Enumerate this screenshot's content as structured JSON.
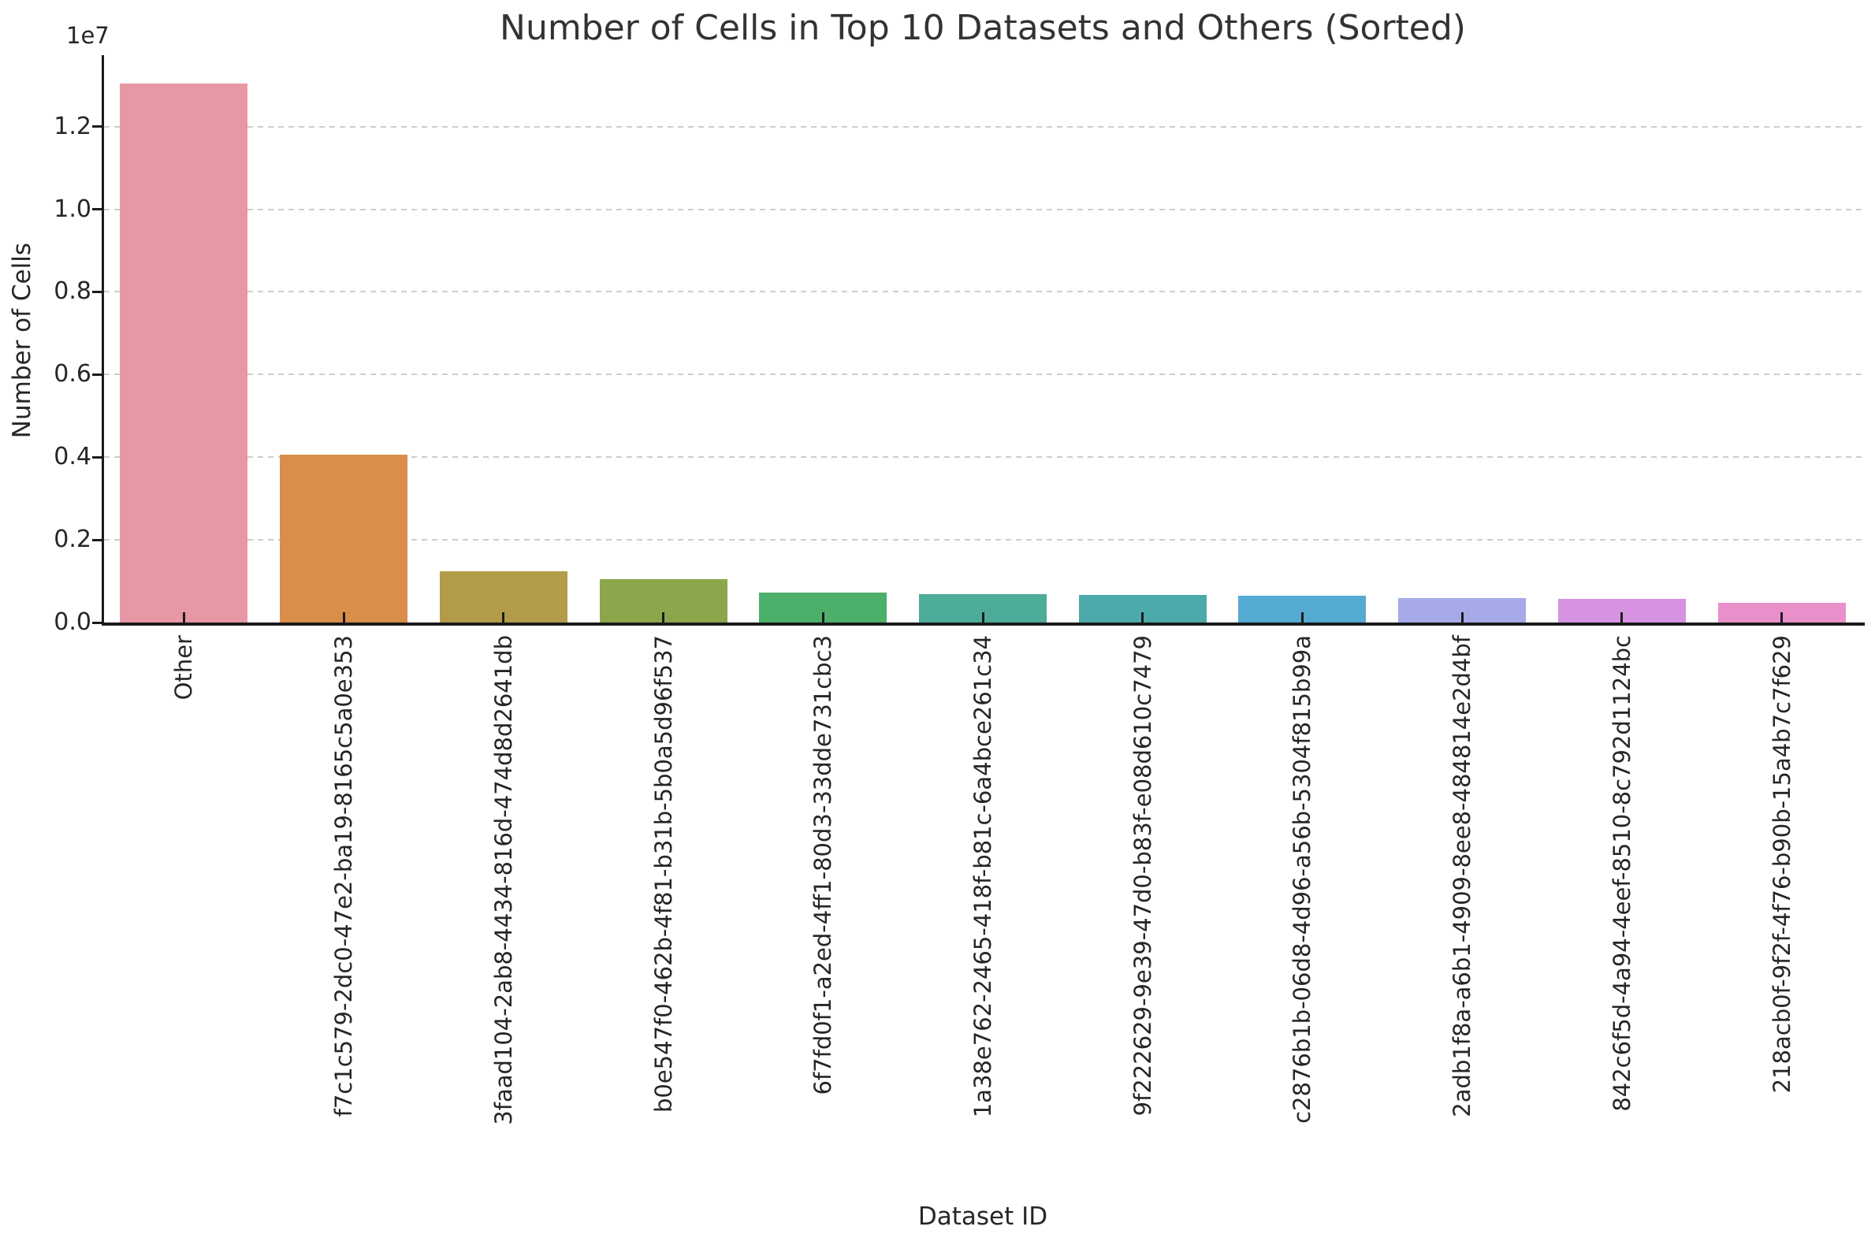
{
  "title": "Number of Cells in Top 10 Datasets and Others (Sorted)",
  "axes": {
    "x_label": "Dataset ID",
    "y_label": "Number of Cells",
    "offset_text": "1e7"
  },
  "chart_data": {
    "type": "bar",
    "title": "Number of Cells in Top 10 Datasets and Others (Sorted)",
    "xlabel": "Dataset ID",
    "ylabel": "Number of Cells",
    "categories": [
      "Other",
      "f7c1c579-2dc0-47e2-ba19-8165c5a0e353",
      "3faad104-2ab8-4434-816d-474d8d2641db",
      "b0e547f0-462b-4f81-b31b-5b0a5d96f537",
      "6f7fd0f1-a2ed-4ff1-80d3-33dde731cbc3",
      "1a38e762-2465-418f-b81c-6a4bce261c34",
      "9f222629-9e39-47d0-b83f-e08d610c7479",
      "c2876b1b-06d8-4d96-a56b-5304f815b99a",
      "2adb1f8a-a6b1-4909-8ee8-484814e2d4bf",
      "842c6f5d-4a94-4eef-8510-8c792d1124bc",
      "218acb0f-9f2f-4f76-b90b-15a4b7c7f629"
    ],
    "values": [
      13050000,
      4060000,
      1240000,
      1050000,
      720000,
      690000,
      670000,
      650000,
      590000,
      570000,
      480000
    ],
    "bar_colors": [
      "#e897a4",
      "#d98e4a",
      "#b29c49",
      "#8ca64b",
      "#4cb06a",
      "#4dab99",
      "#4daaab",
      "#55aad4",
      "#a6aae8",
      "#d593e2",
      "#e98fc9"
    ],
    "ylim": [
      0,
      13730000
    ],
    "y_ticks": {
      "labels": [
        "0.0",
        "0.2",
        "0.4",
        "0.6",
        "0.8",
        "1.0",
        "1.2"
      ],
      "values": [
        0,
        2000000,
        4000000,
        6000000,
        8000000,
        10000000,
        12000000
      ]
    },
    "x_tick_rotation": 90,
    "grid": "horizontal-dashed",
    "legend": "none"
  }
}
